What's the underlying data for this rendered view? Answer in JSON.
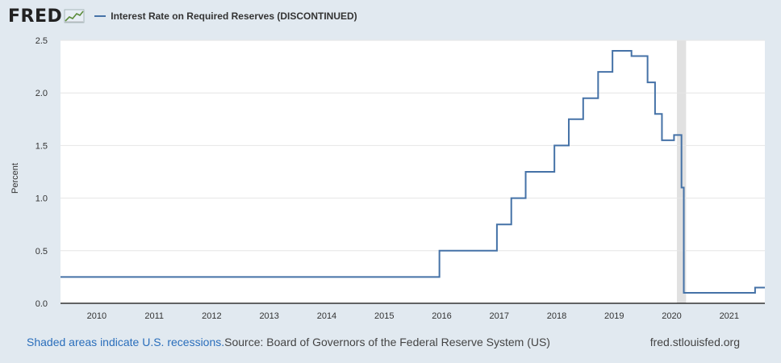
{
  "header": {
    "logo_text": "FRED",
    "logo_icon": "chart-line-icon",
    "series_title": "Interest Rate on Required Reserves (DISCONTINUED)"
  },
  "footer": {
    "recession_link": "Shaded areas indicate U.S. recessions.",
    "source": "Source: Board of Governors of the Federal Reserve System (US)",
    "site": "fred.stlouisfed.org"
  },
  "chart_data": {
    "type": "line",
    "step": true,
    "ylabel": "Percent",
    "xlim": [
      2009.37,
      2021.62
    ],
    "ylim": [
      0,
      2.5
    ],
    "yticks": [
      0.0,
      0.5,
      1.0,
      1.5,
      2.0,
      2.5
    ],
    "ytick_labels": [
      "0.0",
      "0.5",
      "1.0",
      "1.5",
      "2.0",
      "2.5"
    ],
    "xticks": [
      2010,
      2011,
      2012,
      2013,
      2014,
      2015,
      2016,
      2017,
      2018,
      2019,
      2020,
      2021
    ],
    "xtick_labels": [
      "2010",
      "2011",
      "2012",
      "2013",
      "2014",
      "2015",
      "2016",
      "2017",
      "2018",
      "2019",
      "2020",
      "2021"
    ],
    "grid": true,
    "recessions": [
      [
        2020.09,
        2020.25
      ]
    ],
    "line_color": "#4572a7",
    "x": [
      2009.37,
      2015.96,
      2016.96,
      2017.21,
      2017.46,
      2017.96,
      2018.21,
      2018.46,
      2018.72,
      2018.97,
      2019.3,
      2019.58,
      2019.71,
      2019.83,
      2020.04,
      2020.17,
      2020.21,
      2021.45,
      2021.62
    ],
    "y": [
      0.25,
      0.5,
      0.75,
      1.0,
      1.25,
      1.5,
      1.75,
      1.95,
      2.2,
      2.4,
      2.35,
      2.1,
      1.8,
      1.55,
      1.6,
      1.1,
      0.1,
      0.15,
      0.15
    ]
  }
}
